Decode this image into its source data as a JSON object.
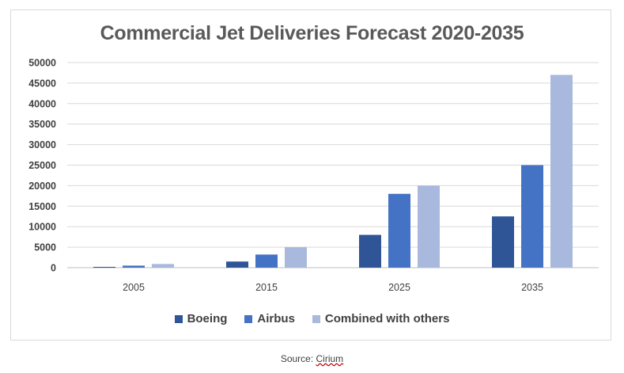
{
  "chart_data": {
    "type": "bar",
    "title": "Commercial Jet Deliveries Forecast 2020-2035",
    "categories": [
      "2005",
      "2015",
      "2025",
      "2035"
    ],
    "series": [
      {
        "name": "Boeing",
        "color": "#2f5597",
        "values": [
          200,
          1500,
          8000,
          12500
        ]
      },
      {
        "name": "Airbus",
        "color": "#4472c4",
        "values": [
          500,
          3200,
          18000,
          25000
        ]
      },
      {
        "name": "Combined with others",
        "color": "#a9b9dd",
        "values": [
          900,
          5000,
          20000,
          47000
        ]
      }
    ],
    "yticks": [
      "0",
      "5000",
      "10000",
      "15000",
      "20000",
      "25000",
      "30000",
      "35000",
      "40000",
      "45000",
      "50000"
    ],
    "ylim": [
      0,
      50000
    ],
    "grid": true,
    "legend_position": "bottom"
  },
  "footer": {
    "source_prefix": "Source: ",
    "source_name": "Cirium"
  }
}
